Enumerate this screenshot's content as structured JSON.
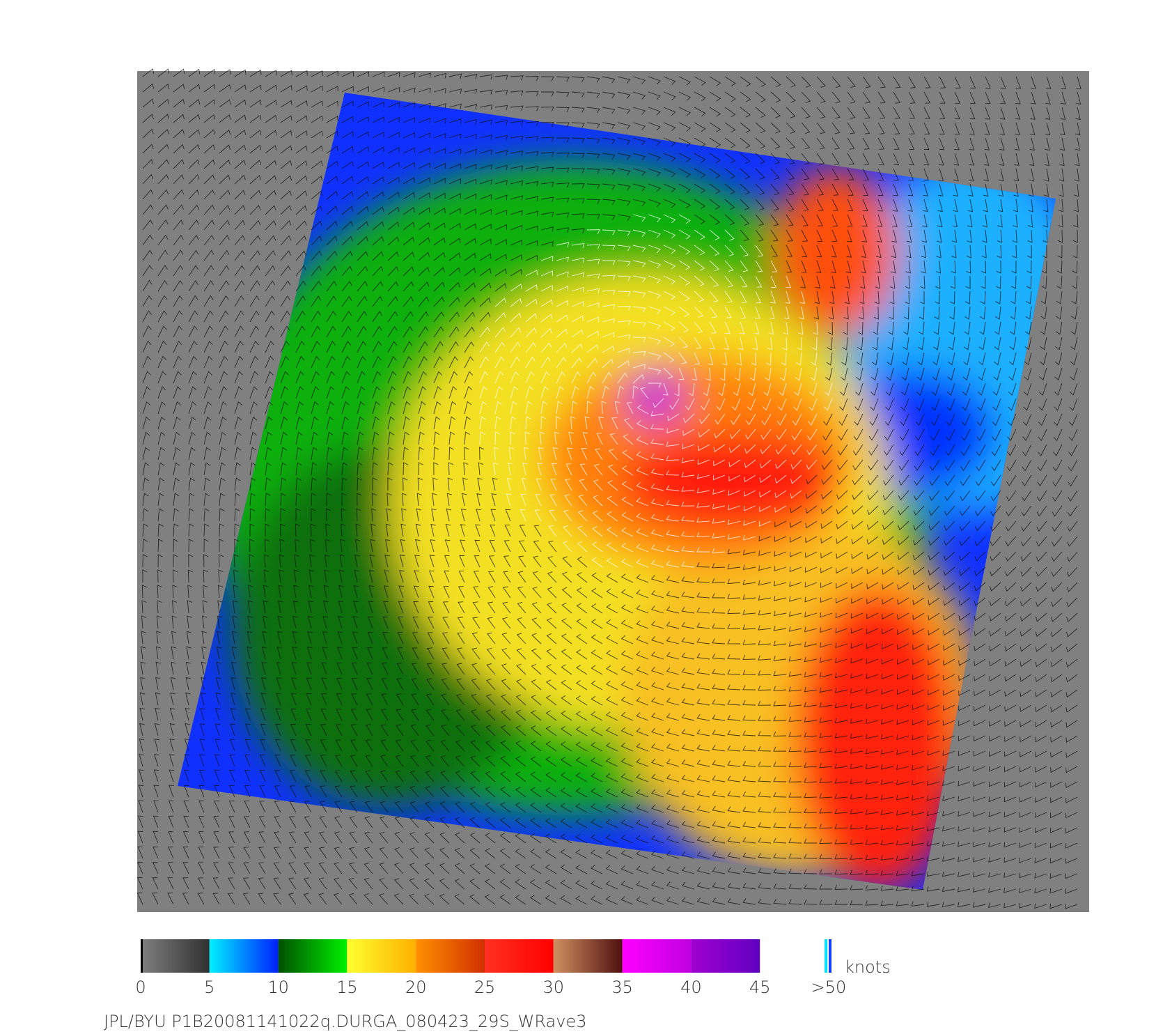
{
  "colorbar": {
    "ticks": [
      0,
      5,
      10,
      15,
      20,
      25,
      30,
      35,
      40,
      45,
      {
        "value": 50,
        "label": ">50"
      }
    ],
    "segments": [
      [
        "#808080",
        "#303030"
      ],
      [
        "#00f0ff",
        "#0020ff"
      ],
      [
        "#005000",
        "#00f000"
      ],
      [
        "#ffff30",
        "#ffb000"
      ],
      [
        "#ff9000",
        "#d03000"
      ],
      [
        "#ff3020",
        "#ff0000"
      ],
      [
        "#d09060",
        "#501010"
      ],
      [
        "#ff00ff",
        "#c000e0"
      ],
      [
        "#a000d0",
        "#6000c0"
      ]
    ],
    "unit": "knots"
  },
  "footer": "JPL/BYU  P1B20081141022q.DURGA_080423_29S_WRave3"
}
